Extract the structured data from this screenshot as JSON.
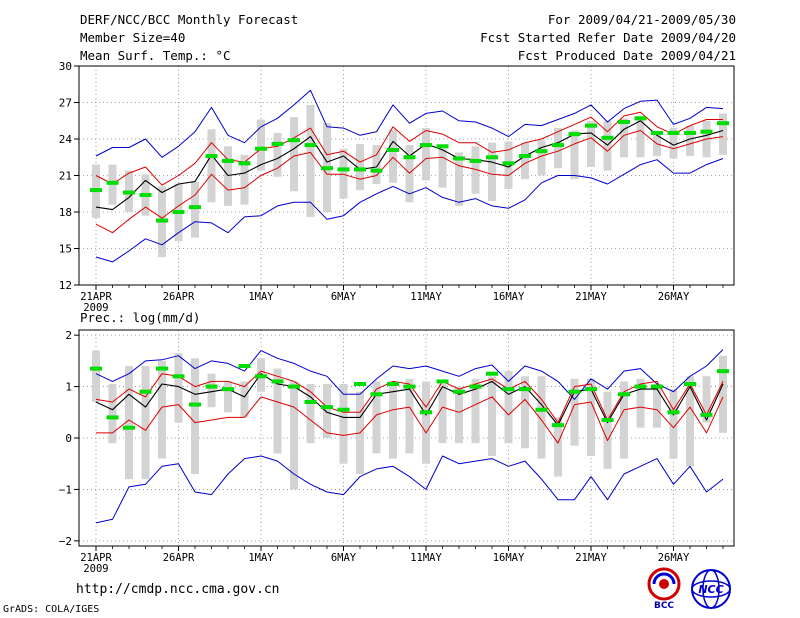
{
  "header": {
    "title_left": "DERF/NCC/BCC Monthly Forecast",
    "member_size": "Member Size=40",
    "variable_top": "Mean Surf. Temp.: °C",
    "period": "For 2009/04/21-2009/05/30",
    "started": "Fcst Started Refer Date 2009/04/20",
    "produced": "Fcst Produced Date 2009/04/21"
  },
  "footer": {
    "url": "http://cmdp.ncc.cma.gov.cn",
    "credit": "GrADS: COLA/IGES",
    "logo_left_text": "BCC",
    "logo_right_text": "NCC"
  },
  "colors": {
    "box": "#d3d3d3",
    "median": "#00dd00",
    "mean": "#000000",
    "spread": "#dd0000",
    "envelope": "#0000cc",
    "grid": "#888888"
  },
  "chart_data": [
    {
      "type": "line",
      "title": "Mean Surf. Temp.: °C",
      "x_tick_labels": [
        "21APR",
        "26APR",
        "1MAY",
        "6MAY",
        "11MAY",
        "16MAY",
        "21MAY",
        "26MAY"
      ],
      "x_tick_day_index": [
        0,
        5,
        10,
        15,
        20,
        25,
        30,
        35
      ],
      "x_year_label": "2009",
      "ylim": [
        12,
        30
      ],
      "yticks": [
        12,
        15,
        18,
        21,
        24,
        27,
        30
      ],
      "ytick_labels": [
        "12",
        "15",
        "18",
        "21",
        "24",
        "27",
        "30"
      ],
      "series": [
        {
          "name": "max",
          "values": [
            22.6,
            23.3,
            23.3,
            24,
            22.5,
            23.4,
            24.6,
            26.6,
            24.3,
            23.7,
            25,
            25.7,
            26.8,
            28,
            25,
            24.9,
            24.3,
            24.6,
            26.8,
            25.3,
            26.1,
            26.3,
            25.5,
            25.4,
            24.9,
            24.2,
            25.2,
            25.1,
            25.6,
            26.1,
            26.8,
            25.4,
            26.5,
            27.1,
            27.2,
            25.2,
            25.7,
            26.6,
            26.5
          ]
        },
        {
          "name": "upper",
          "values": [
            21,
            20.3,
            21.2,
            21.7,
            20.2,
            21,
            22,
            23.7,
            22.3,
            22.1,
            23.2,
            23.4,
            24.1,
            24.9,
            22.7,
            23,
            22.1,
            22.7,
            25,
            23.8,
            24.7,
            24.4,
            23.7,
            23.7,
            22.9,
            23.1,
            23.7,
            24,
            24.6,
            25.2,
            25.8,
            24.6,
            25.9,
            26.2,
            25,
            24.4,
            25.1,
            25.6,
            25.6
          ]
        },
        {
          "name": "mean",
          "values": [
            18.4,
            18.2,
            19.2,
            20.6,
            19.6,
            20.3,
            20.5,
            22.7,
            21,
            21.2,
            21.9,
            22.4,
            23.2,
            24.2,
            22.1,
            22.6,
            21.5,
            21.7,
            23.8,
            22.6,
            23.6,
            23.1,
            22.4,
            22.3,
            22.1,
            21.7,
            22.6,
            23.3,
            23.7,
            24.4,
            24.5,
            23.5,
            24.8,
            25.5,
            24.3,
            23.5,
            24,
            24.3,
            24.7
          ]
        },
        {
          "name": "lower",
          "values": [
            17,
            16.3,
            17.4,
            18.4,
            17.5,
            18.5,
            19.4,
            21.1,
            19.8,
            20,
            21,
            21.6,
            22.6,
            22.9,
            21.1,
            21.1,
            20.7,
            21,
            22.5,
            21.2,
            22.4,
            22.5,
            21.8,
            21.5,
            21.1,
            21,
            22,
            22.6,
            23,
            23.6,
            24.1,
            23,
            24.3,
            24.7,
            23.6,
            23.2,
            23.6,
            24,
            24.2
          ]
        },
        {
          "name": "min",
          "values": [
            14.3,
            13.9,
            14.8,
            15.8,
            15.3,
            16.3,
            17.2,
            17.1,
            16.3,
            17.6,
            17.7,
            18.5,
            18.8,
            18.8,
            17.4,
            17.7,
            18.8,
            19.5,
            20.1,
            19.5,
            20,
            19.2,
            18.8,
            19.1,
            18.5,
            18.3,
            19,
            20.4,
            21,
            21,
            20.8,
            20.3,
            21.1,
            21.9,
            22.3,
            21.2,
            21.2,
            21.9,
            22.4
          ]
        },
        {
          "name": "box_top",
          "values": [
            21.9,
            21.9,
            21.4,
            21.1,
            20.1,
            20.3,
            20.5,
            24.8,
            23.4,
            22.7,
            25.6,
            24.5,
            25.8,
            26.8,
            25.3,
            23.2,
            23.6,
            23.5,
            24.8,
            23.5,
            24.9,
            23.2,
            22.9,
            23.4,
            23.7,
            23.8,
            23.7,
            23.9,
            24.9,
            24.7,
            25.5,
            25.5,
            25.7,
            25.9,
            24.6,
            24.9,
            25.1,
            25.5,
            26.1
          ]
        },
        {
          "name": "box_bottom",
          "values": [
            17.5,
            18.6,
            18,
            17.7,
            14.3,
            15.6,
            15.9,
            18.8,
            18.5,
            18.6,
            21.4,
            20.9,
            19.7,
            17.6,
            18,
            19.1,
            19.8,
            20.3,
            20.4,
            18.8,
            20.6,
            20,
            18.5,
            19.5,
            18.9,
            19.9,
            20.7,
            21,
            21.6,
            20.7,
            21.7,
            21.4,
            22.5,
            22.5,
            22.6,
            22.4,
            22.6,
            22.5,
            22.7
          ]
        },
        {
          "name": "median",
          "values": [
            19.8,
            20.4,
            19.6,
            19.4,
            17.3,
            18,
            18.4,
            22.6,
            22.2,
            22,
            23.2,
            23.6,
            23.9,
            23.5,
            21.6,
            21.5,
            21.5,
            21.4,
            23.1,
            22.5,
            23.5,
            23.4,
            22.4,
            22.2,
            22.5,
            22,
            22.6,
            23,
            23.5,
            24.4,
            25.1,
            24.1,
            25.4,
            25.7,
            24.5,
            24.5,
            24.5,
            24.6,
            25.3
          ]
        }
      ]
    },
    {
      "type": "line",
      "title": "Prec.: log(mm/d)",
      "x_tick_labels": [
        "21APR",
        "26APR",
        "1MAY",
        "6MAY",
        "11MAY",
        "16MAY",
        "21MAY",
        "26MAY"
      ],
      "x_tick_day_index": [
        0,
        5,
        10,
        15,
        20,
        25,
        30,
        35
      ],
      "x_year_label": "2009",
      "ylim": [
        -2.1,
        2.1
      ],
      "yticks": [
        -2,
        -1,
        0,
        1,
        2
      ],
      "ytick_labels": [
        "−2",
        "−1",
        "0",
        "1",
        "2"
      ],
      "series": [
        {
          "name": "max",
          "values": [
            1.25,
            1.1,
            1.25,
            1.5,
            1.52,
            1.6,
            1.35,
            1.5,
            1.45,
            1.3,
            1.7,
            1.55,
            1.45,
            1.3,
            1.2,
            0.85,
            0.85,
            1.15,
            1.4,
            1.35,
            1.4,
            1.3,
            1.2,
            1.35,
            1.42,
            1.1,
            1.4,
            1.3,
            1.1,
            0.75,
            1.15,
            0.95,
            1.3,
            1.35,
            1.05,
            0.9,
            1.2,
            1.4,
            1.72
          ]
        },
        {
          "name": "upper",
          "values": [
            0.75,
            0.7,
            0.95,
            0.8,
            1.25,
            1.2,
            1,
            1.1,
            1.1,
            1,
            1.3,
            1.2,
            1.1,
            0.9,
            0.6,
            0.5,
            0.5,
            0.95,
            1.1,
            1.05,
            0.6,
            1.1,
            0.95,
            1.05,
            1.15,
            0.95,
            1.1,
            0.75,
            0.3,
            1,
            1.05,
            0.35,
            0.9,
            1.05,
            1.1,
            0.55,
            1.05,
            0.45,
            1.1
          ]
        },
        {
          "name": "mean",
          "values": [
            0.7,
            0.55,
            0.85,
            0.6,
            1.05,
            1,
            0.85,
            0.9,
            0.95,
            0.8,
            1.25,
            1.05,
            1,
            0.8,
            0.5,
            0.4,
            0.4,
            0.85,
            0.9,
            0.95,
            0.45,
            1,
            0.85,
            0.95,
            1.1,
            0.85,
            1,
            0.65,
            0.25,
            0.9,
            0.95,
            0.3,
            0.85,
            0.95,
            0.95,
            0.45,
            1,
            0.35,
            1.05
          ]
        },
        {
          "name": "lower",
          "values": [
            0.1,
            0.1,
            0.35,
            0.15,
            0.6,
            0.65,
            0.3,
            0.35,
            0.4,
            0.4,
            0.8,
            0.7,
            0.6,
            0.35,
            0.1,
            0.05,
            0.1,
            0.45,
            0.55,
            0.6,
            0.1,
            0.6,
            0.5,
            0.65,
            0.8,
            0.45,
            0.75,
            0.35,
            -0.1,
            0.65,
            0.7,
            -0.05,
            0.55,
            0.6,
            0.55,
            0.2,
            0.6,
            0.1,
            0.8
          ]
        },
        {
          "name": "min",
          "values": [
            -1.65,
            -1.58,
            -0.95,
            -0.9,
            -0.55,
            -0.5,
            -1.05,
            -1.1,
            -0.7,
            -0.4,
            -0.35,
            -0.45,
            -0.7,
            -0.9,
            -1.05,
            -1.1,
            -0.75,
            -0.6,
            -0.55,
            -0.75,
            -1,
            -0.35,
            -0.5,
            -0.45,
            -0.4,
            -0.55,
            -0.45,
            -0.8,
            -1.2,
            -1.2,
            -0.75,
            -1.2,
            -0.7,
            -0.55,
            -0.4,
            -0.9,
            -0.55,
            -1.05,
            -0.8
          ]
        },
        {
          "name": "box_top",
          "values": [
            1.7,
            1.05,
            1.4,
            1.4,
            1.5,
            1.65,
            1.55,
            1.25,
            1.1,
            1.1,
            1.55,
            1.35,
            1.1,
            1.05,
            1.05,
            1.05,
            0.9,
            1.1,
            1.1,
            1.15,
            1.1,
            1.05,
            1,
            1.15,
            1.2,
            1.3,
            1.2,
            1.2,
            0.4,
            1.15,
            1.15,
            0.9,
            1.1,
            1.15,
            1.05,
            0.95,
            1.2,
            1.2,
            1.6
          ]
        },
        {
          "name": "box_bottom",
          "values": [
            0.7,
            -0.1,
            -0.8,
            -0.8,
            -0.4,
            0.3,
            -0.7,
            0.6,
            0.5,
            0.4,
            0.9,
            -0.3,
            -1,
            -0.1,
            0,
            -0.5,
            -0.7,
            -0.3,
            -0.4,
            -0.3,
            -0.5,
            -0.1,
            -0.1,
            -0.1,
            -0.35,
            -0.1,
            -0.2,
            -0.4,
            -0.75,
            -0.15,
            -0.35,
            -0.6,
            -0.4,
            0.2,
            0.2,
            -0.4,
            -0.55,
            0.3,
            0.1
          ]
        },
        {
          "name": "median",
          "values": [
            1.35,
            0.4,
            0.2,
            0.9,
            1.35,
            1.2,
            0.65,
            1,
            0.95,
            1.4,
            1.2,
            1.1,
            1,
            0.7,
            0.6,
            0.55,
            1.05,
            0.85,
            1.05,
            1,
            0.5,
            1.1,
            0.9,
            1,
            1.25,
            0.95,
            0.95,
            0.55,
            0.25,
            0.9,
            0.95,
            0.35,
            0.85,
            1,
            1,
            0.5,
            1.05,
            0.45,
            1.3
          ]
        }
      ]
    }
  ]
}
